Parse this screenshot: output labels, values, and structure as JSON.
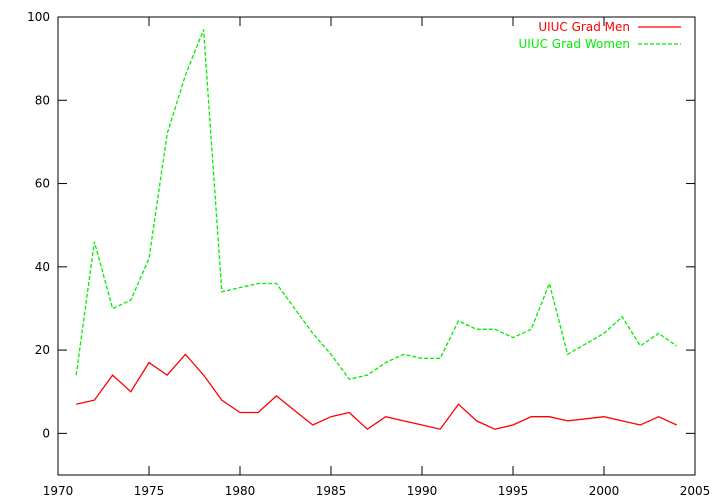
{
  "chart_data": {
    "type": "line",
    "title": "",
    "xlabel": "",
    "ylabel": "",
    "xlim": [
      1970,
      2005
    ],
    "ylim": [
      -10,
      100
    ],
    "xticks": [
      1970,
      1975,
      1980,
      1985,
      1990,
      1995,
      2000,
      2005
    ],
    "yticks": [
      0,
      20,
      40,
      60,
      80,
      100
    ],
    "grid": false,
    "legend_position": "top-right",
    "series": [
      {
        "name": "UIUC Grad Men",
        "color": "#ff0000",
        "dash": "solid",
        "x": [
          1971,
          1972,
          1973,
          1974,
          1975,
          1976,
          1977,
          1978,
          1979,
          1980,
          1981,
          1982,
          1983,
          1984,
          1985,
          1986,
          1987,
          1988,
          1989,
          1990,
          1991,
          1992,
          1993,
          1994,
          1995,
          1996,
          1997,
          1998,
          1999,
          2000,
          2001,
          2002,
          2003,
          2004
        ],
        "y": [
          7,
          8,
          14,
          10,
          17,
          14,
          19,
          14,
          8,
          5,
          5,
          9,
          5.5,
          2,
          4,
          5,
          1,
          4,
          3,
          2,
          1,
          7,
          3,
          1,
          2,
          4,
          4,
          3,
          3.5,
          4,
          3,
          2,
          4,
          2
        ]
      },
      {
        "name": "UIUC Grad Women",
        "color": "#00ee00",
        "dash": "dashed",
        "x": [
          1971,
          1972,
          1973,
          1974,
          1975,
          1976,
          1977,
          1978,
          1979,
          1980,
          1981,
          1982,
          1983,
          1984,
          1985,
          1986,
          1987,
          1988,
          1989,
          1990,
          1991,
          1992,
          1993,
          1994,
          1995,
          1996,
          1997,
          1998,
          1999,
          2000,
          2001,
          2002,
          2003,
          2004
        ],
        "y": [
          14,
          46,
          30,
          32,
          42,
          72,
          86,
          97,
          34,
          35,
          36,
          36,
          30,
          24,
          19,
          13,
          14,
          17,
          19,
          18,
          18,
          27,
          25,
          25,
          23,
          25,
          36,
          19,
          21.5,
          24,
          28,
          21,
          24,
          21
        ]
      }
    ]
  }
}
